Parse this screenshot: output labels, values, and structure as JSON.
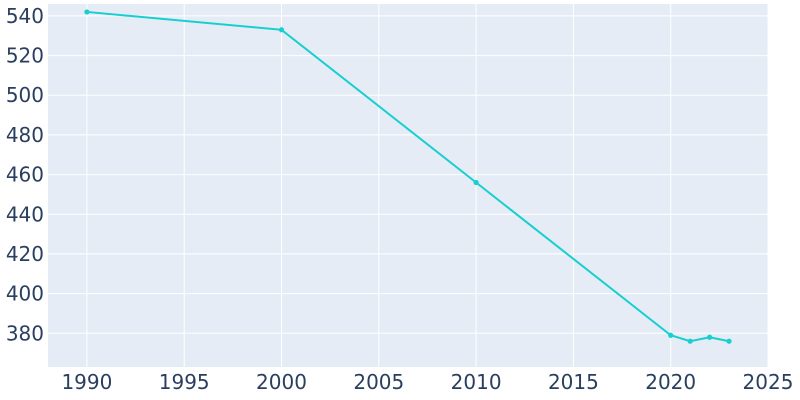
{
  "chart_data": {
    "type": "line",
    "title": "",
    "xlabel": "",
    "ylabel": "",
    "xlim": [
      1988,
      2025
    ],
    "ylim": [
      363,
      546
    ],
    "x_ticks": [
      1990,
      1995,
      2000,
      2005,
      2010,
      2015,
      2020,
      2025
    ],
    "y_ticks": [
      380,
      400,
      420,
      440,
      460,
      480,
      500,
      520,
      540
    ],
    "grid": true,
    "legend": "none",
    "colors": {
      "plot_background": "#e5ecf6",
      "grid": "#ffffff",
      "line": "#17cfcf",
      "tick_text": "#2a3f5f"
    },
    "series": [
      {
        "x": [
          1990,
          2000,
          2010,
          2020,
          2021,
          2022,
          2023
        ],
        "y": [
          542,
          533,
          456,
          379,
          376,
          378,
          376
        ]
      }
    ]
  }
}
